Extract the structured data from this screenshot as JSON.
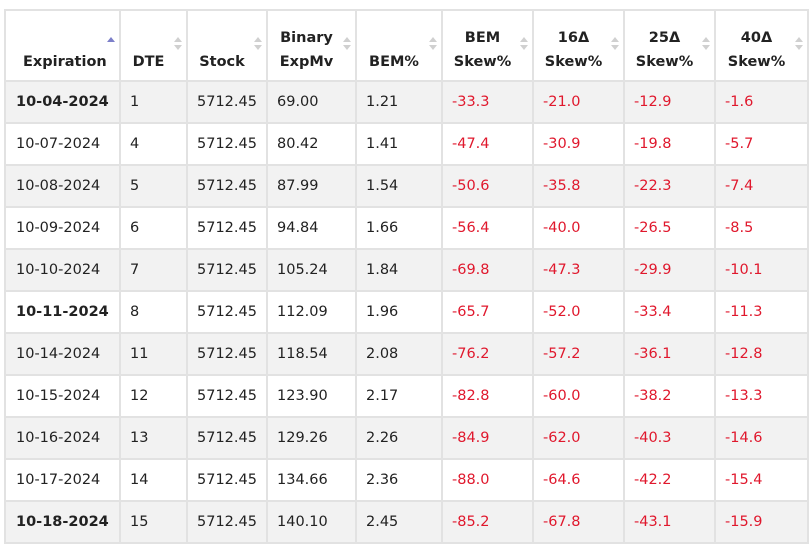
{
  "headers": [
    {
      "name": "header-expiration",
      "lines": [
        "Expiration"
      ],
      "sort": "asc"
    },
    {
      "name": "header-dte",
      "lines": [
        "DTE"
      ],
      "sort": "none"
    },
    {
      "name": "header-stock",
      "lines": [
        "Stock"
      ],
      "sort": "none"
    },
    {
      "name": "header-binary-expmv",
      "lines": [
        "Binary",
        "ExpMv"
      ],
      "sort": "none"
    },
    {
      "name": "header-bem-pct",
      "lines": [
        "BEM%"
      ],
      "sort": "none"
    },
    {
      "name": "header-bem-skew",
      "lines": [
        "BEM",
        "Skew%"
      ],
      "sort": "none"
    },
    {
      "name": "header-16d-skew",
      "lines": [
        "16Δ",
        "Skew%"
      ],
      "sort": "none"
    },
    {
      "name": "header-25d-skew",
      "lines": [
        "25Δ",
        "Skew%"
      ],
      "sort": "none"
    },
    {
      "name": "header-40d-skew",
      "lines": [
        "40Δ",
        "Skew%"
      ],
      "sort": "none"
    }
  ],
  "rows": [
    {
      "expiration": "10-04-2024",
      "bold": true,
      "dte": "1",
      "stock": "5712.45",
      "binary_expmv": "69.00",
      "bem_pct": "1.21",
      "bem_skew": "-33.3",
      "skew16": "-21.0",
      "skew25": "-12.9",
      "skew40": "-1.6"
    },
    {
      "expiration": "10-07-2024",
      "bold": false,
      "dte": "4",
      "stock": "5712.45",
      "binary_expmv": "80.42",
      "bem_pct": "1.41",
      "bem_skew": "-47.4",
      "skew16": "-30.9",
      "skew25": "-19.8",
      "skew40": "-5.7"
    },
    {
      "expiration": "10-08-2024",
      "bold": false,
      "dte": "5",
      "stock": "5712.45",
      "binary_expmv": "87.99",
      "bem_pct": "1.54",
      "bem_skew": "-50.6",
      "skew16": "-35.8",
      "skew25": "-22.3",
      "skew40": "-7.4"
    },
    {
      "expiration": "10-09-2024",
      "bold": false,
      "dte": "6",
      "stock": "5712.45",
      "binary_expmv": "94.84",
      "bem_pct": "1.66",
      "bem_skew": "-56.4",
      "skew16": "-40.0",
      "skew25": "-26.5",
      "skew40": "-8.5"
    },
    {
      "expiration": "10-10-2024",
      "bold": false,
      "dte": "7",
      "stock": "5712.45",
      "binary_expmv": "105.24",
      "bem_pct": "1.84",
      "bem_skew": "-69.8",
      "skew16": "-47.3",
      "skew25": "-29.9",
      "skew40": "-10.1"
    },
    {
      "expiration": "10-11-2024",
      "bold": true,
      "dte": "8",
      "stock": "5712.45",
      "binary_expmv": "112.09",
      "bem_pct": "1.96",
      "bem_skew": "-65.7",
      "skew16": "-52.0",
      "skew25": "-33.4",
      "skew40": "-11.3"
    },
    {
      "expiration": "10-14-2024",
      "bold": false,
      "dte": "11",
      "stock": "5712.45",
      "binary_expmv": "118.54",
      "bem_pct": "2.08",
      "bem_skew": "-76.2",
      "skew16": "-57.2",
      "skew25": "-36.1",
      "skew40": "-12.8"
    },
    {
      "expiration": "10-15-2024",
      "bold": false,
      "dte": "12",
      "stock": "5712.45",
      "binary_expmv": "123.90",
      "bem_pct": "2.17",
      "bem_skew": "-82.8",
      "skew16": "-60.0",
      "skew25": "-38.2",
      "skew40": "-13.3"
    },
    {
      "expiration": "10-16-2024",
      "bold": false,
      "dte": "13",
      "stock": "5712.45",
      "binary_expmv": "129.26",
      "bem_pct": "2.26",
      "bem_skew": "-84.9",
      "skew16": "-62.0",
      "skew25": "-40.3",
      "skew40": "-14.6"
    },
    {
      "expiration": "10-17-2024",
      "bold": false,
      "dte": "14",
      "stock": "5712.45",
      "binary_expmv": "134.66",
      "bem_pct": "2.36",
      "bem_skew": "-88.0",
      "skew16": "-64.6",
      "skew25": "-42.2",
      "skew40": "-15.4"
    },
    {
      "expiration": "10-18-2024",
      "bold": true,
      "dte": "15",
      "stock": "5712.45",
      "binary_expmv": "140.10",
      "bem_pct": "2.45",
      "bem_skew": "-85.2",
      "skew16": "-67.8",
      "skew25": "-43.1",
      "skew40": "-15.9"
    }
  ],
  "colors": {
    "negative": "#e0182d",
    "sort_active": "#7c7fc9",
    "sort_inactive": "#d0d0d0",
    "row_stripe": "#f2f2f2",
    "grid": "#e2e2e2"
  }
}
